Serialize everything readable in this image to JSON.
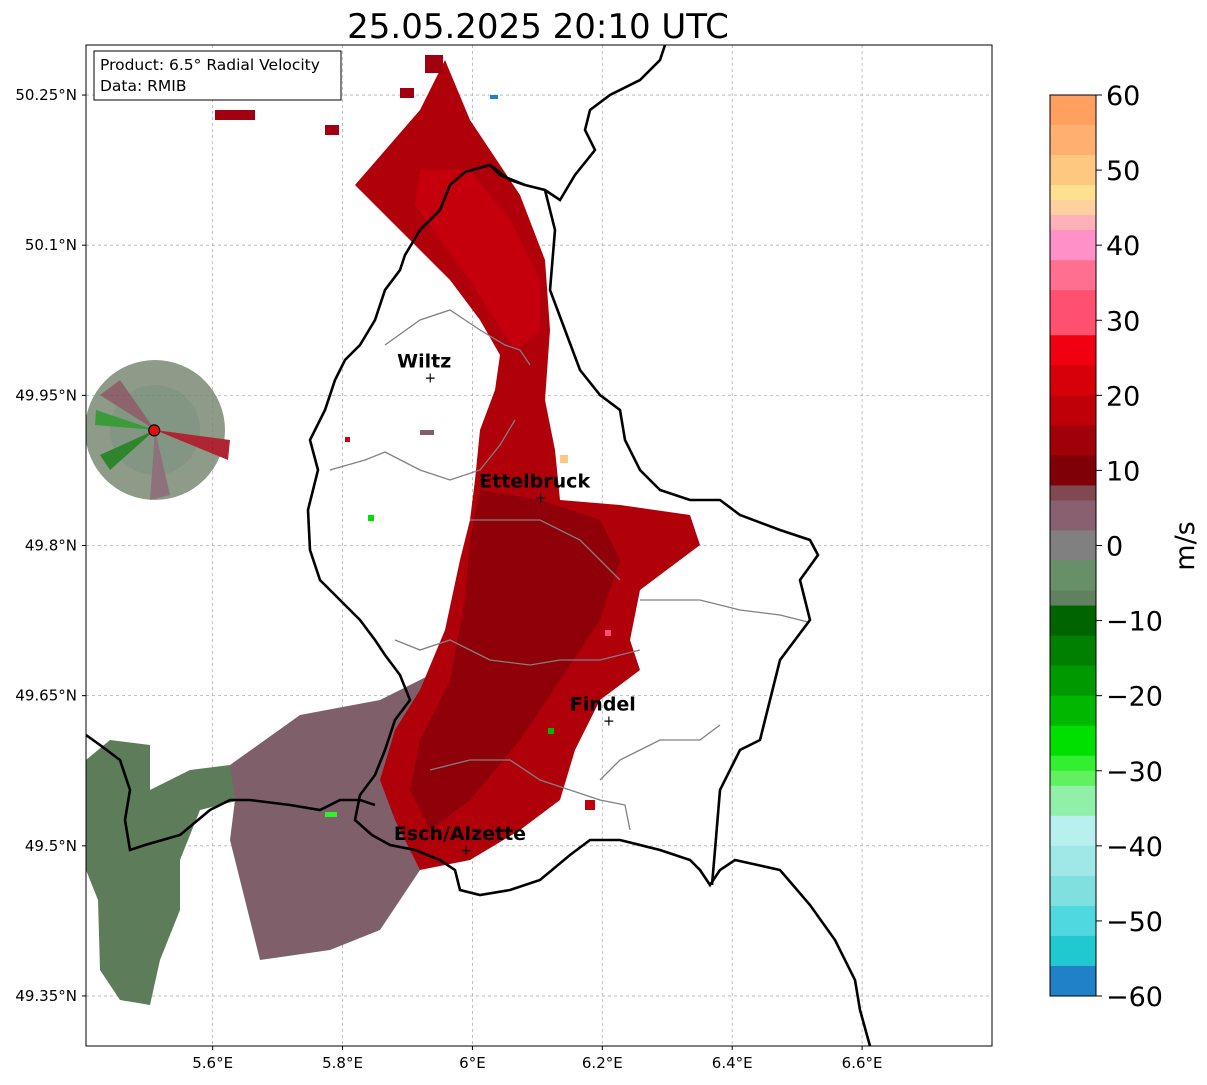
{
  "title": "25.05.2025 20:10 UTC",
  "info_box": {
    "line1": "Product: 6.5° Radial Velocity",
    "line2": "Data: RMIB"
  },
  "map": {
    "lon_range": [
      5.405,
      6.8
    ],
    "lat_range": [
      49.3,
      50.3
    ],
    "x_ticks": [
      {
        "value": 5.6,
        "label": "5.6°E"
      },
      {
        "value": 5.8,
        "label": "5.8°E"
      },
      {
        "value": 6.0,
        "label": "6°E"
      },
      {
        "value": 6.2,
        "label": "6.2°E"
      },
      {
        "value": 6.4,
        "label": "6.4°E"
      },
      {
        "value": 6.6,
        "label": "6.6°E"
      }
    ],
    "y_ticks": [
      {
        "value": 50.25,
        "label": "50.25°N"
      },
      {
        "value": 50.1,
        "label": "50.1°N"
      },
      {
        "value": 49.95,
        "label": "49.95°N"
      },
      {
        "value": 49.8,
        "label": "49.8°N"
      },
      {
        "value": 49.65,
        "label": "49.65°N"
      },
      {
        "value": 49.5,
        "label": "49.5°N"
      },
      {
        "value": 49.35,
        "label": "49.35°N"
      }
    ],
    "grid": true,
    "cities": [
      {
        "name": "Wiltz",
        "lon": 5.935,
        "lat": 49.968
      },
      {
        "name": "Ettelbruck",
        "lon": 6.105,
        "lat": 49.848
      },
      {
        "name": "Findel",
        "lon": 6.21,
        "lat": 49.625
      },
      {
        "name": "Esch/Alzette",
        "lon": 5.99,
        "lat": 49.496
      }
    ],
    "radar_site": {
      "lon": 5.51,
      "lat": 49.915,
      "color": "#e01010"
    }
  },
  "colorbar": {
    "label": "m/s",
    "range": [
      -60,
      60
    ],
    "ticks": [
      {
        "value": 60,
        "label": "60"
      },
      {
        "value": 50,
        "label": "50"
      },
      {
        "value": 40,
        "label": "40"
      },
      {
        "value": 30,
        "label": "30"
      },
      {
        "value": 20,
        "label": "20"
      },
      {
        "value": 10,
        "label": "10"
      },
      {
        "value": 0,
        "label": "0"
      },
      {
        "value": -10,
        "label": "−10"
      },
      {
        "value": -20,
        "label": "−20"
      },
      {
        "value": -30,
        "label": "−30"
      },
      {
        "value": -40,
        "label": "−40"
      },
      {
        "value": -50,
        "label": "−50"
      },
      {
        "value": -60,
        "label": "−60"
      }
    ],
    "bands": [
      {
        "from": 56,
        "to": 60,
        "color": "#ffa060"
      },
      {
        "from": 52,
        "to": 56,
        "color": "#ffb070"
      },
      {
        "from": 48,
        "to": 52,
        "color": "#ffc880"
      },
      {
        "from": 46,
        "to": 48,
        "color": "#ffe090"
      },
      {
        "from": 44,
        "to": 46,
        "color": "#ffd0a0"
      },
      {
        "from": 42,
        "to": 44,
        "color": "#ffb0b8"
      },
      {
        "from": 38,
        "to": 42,
        "color": "#ff90c8"
      },
      {
        "from": 34,
        "to": 38,
        "color": "#ff7090"
      },
      {
        "from": 28,
        "to": 34,
        "color": "#ff5070"
      },
      {
        "from": 24,
        "to": 28,
        "color": "#f00010"
      },
      {
        "from": 20,
        "to": 24,
        "color": "#d80008"
      },
      {
        "from": 16,
        "to": 20,
        "color": "#c00008"
      },
      {
        "from": 12,
        "to": 16,
        "color": "#a00008"
      },
      {
        "from": 8,
        "to": 12,
        "color": "#800008"
      },
      {
        "from": 6,
        "to": 8,
        "color": "#804850"
      },
      {
        "from": 2,
        "to": 6,
        "color": "#886070"
      },
      {
        "from": -2,
        "to": 2,
        "color": "#808080"
      },
      {
        "from": -6,
        "to": -2,
        "color": "#689068"
      },
      {
        "from": -8,
        "to": -6,
        "color": "#608060"
      },
      {
        "from": -12,
        "to": -8,
        "color": "#006400"
      },
      {
        "from": -16,
        "to": -12,
        "color": "#008000"
      },
      {
        "from": -20,
        "to": -16,
        "color": "#009a00"
      },
      {
        "from": -24,
        "to": -20,
        "color": "#00b800"
      },
      {
        "from": -28,
        "to": -24,
        "color": "#00e000"
      },
      {
        "from": -30,
        "to": -28,
        "color": "#30f030"
      },
      {
        "from": -32,
        "to": -30,
        "color": "#60f060"
      },
      {
        "from": -36,
        "to": -32,
        "color": "#90f0a8"
      },
      {
        "from": -40,
        "to": -36,
        "color": "#b8f0f0"
      },
      {
        "from": -44,
        "to": -40,
        "color": "#a0e8e8"
      },
      {
        "from": -48,
        "to": -44,
        "color": "#80e0e0"
      },
      {
        "from": -52,
        "to": -48,
        "color": "#50d8e0"
      },
      {
        "from": -56,
        "to": -52,
        "color": "#20c8d0"
      },
      {
        "from": -60,
        "to": -56,
        "color": "#2080c8"
      }
    ]
  },
  "colors": {
    "border": "#000000",
    "canton_lines": "#808080",
    "grid": "#b0b0b0"
  }
}
